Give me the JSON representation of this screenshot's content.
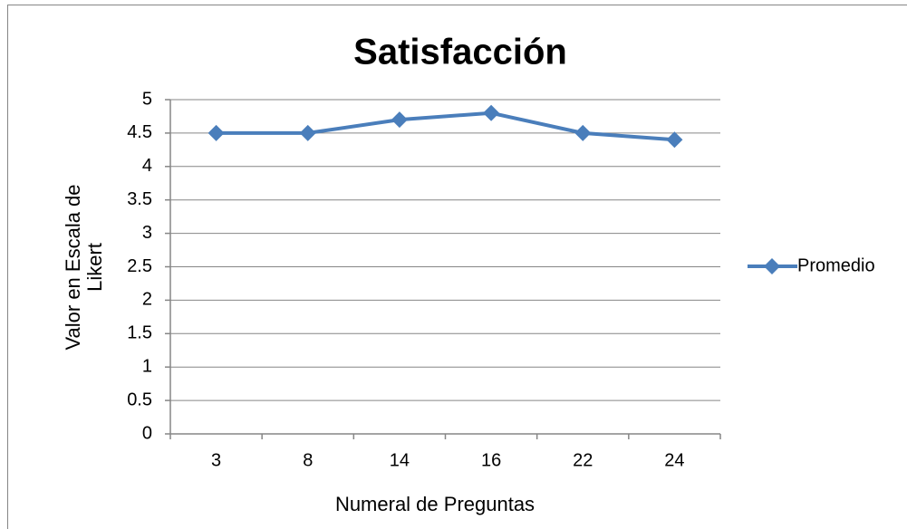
{
  "chart_data": {
    "type": "line",
    "title": "Satisfacción",
    "x_label": "Numeral de Preguntas",
    "y_label": [
      "Valor en Escala de",
      "Likert"
    ],
    "categories": [
      "3",
      "8",
      "14",
      "16",
      "22",
      "24"
    ],
    "series": [
      {
        "name": "Promedio",
        "color": "#4a7ebb",
        "values": [
          4.5,
          4.5,
          4.7,
          4.8,
          4.5,
          4.4
        ]
      }
    ],
    "ylim": [
      0,
      5
    ],
    "yticks": [
      0,
      0.5,
      1,
      1.5,
      2,
      2.5,
      3,
      3.5,
      4,
      4.5,
      5
    ],
    "grid": true,
    "legend": "right"
  }
}
